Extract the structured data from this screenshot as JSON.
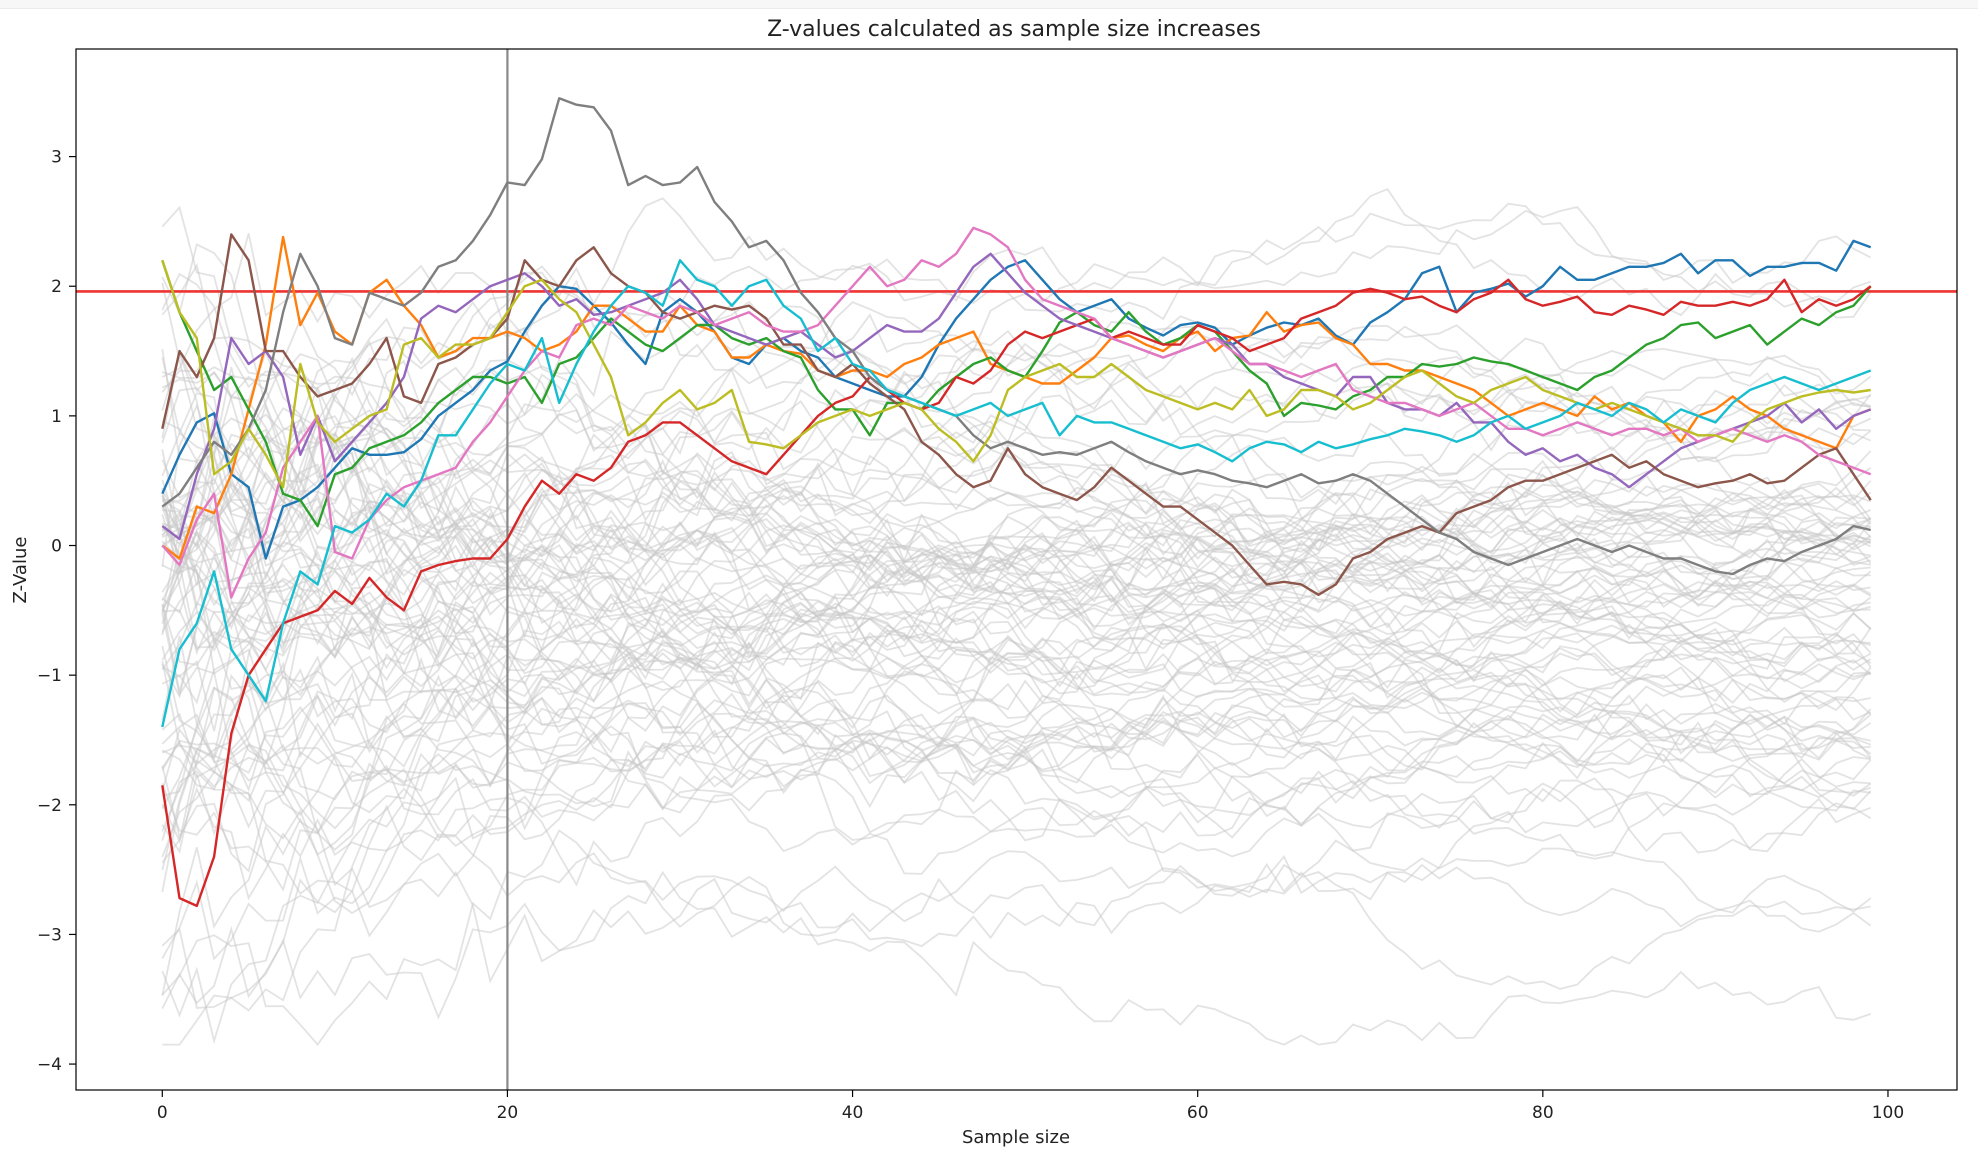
{
  "chart_data": {
    "type": "line",
    "title": "Z-values calculated as sample size increases",
    "xlabel": "Sample size",
    "ylabel": "Z-Value",
    "xlim": [
      -5,
      104
    ],
    "ylim": [
      -4.2,
      3.83
    ],
    "x_ticks": [
      0,
      20,
      40,
      60,
      80,
      100
    ],
    "y_ticks": [
      -4,
      -3,
      -2,
      -1,
      0,
      1,
      2,
      3
    ],
    "tick_labels": {
      "x": [
        "0",
        "20",
        "40",
        "60",
        "80",
        "100"
      ],
      "y": [
        "−4",
        "−3",
        "−2",
        "−1",
        "0",
        "1",
        "2",
        "3"
      ]
    },
    "grid": false,
    "legend": "none",
    "reference_lines": [
      {
        "orientation": "horizontal",
        "value": 1.96,
        "color": "#ee3333"
      },
      {
        "orientation": "vertical",
        "value": 20,
        "color": "#888888"
      }
    ],
    "background_series": {
      "count": 90,
      "color": "#c8c8c8",
      "opacity": 0.5,
      "note": "faint gray random-walk z-value traces, x = 0..99"
    },
    "series": [
      {
        "color": "#1f77b4",
        "x_start": 0,
        "values": [
          0.4,
          0.7,
          0.95,
          1.02,
          0.55,
          0.45,
          -0.1,
          0.3,
          0.35,
          0.45,
          0.6,
          0.75,
          0.7,
          0.7,
          0.72,
          0.82,
          1.0,
          1.1,
          1.2,
          1.35,
          1.42,
          1.65,
          1.85,
          2.0,
          1.98,
          1.85,
          1.72,
          1.55,
          1.4,
          1.8,
          1.9,
          1.8,
          1.65,
          1.45,
          1.4,
          1.55,
          1.6,
          1.5,
          1.45,
          1.3,
          1.25,
          1.2,
          1.15,
          1.15,
          1.3,
          1.55,
          1.75,
          1.9,
          2.05,
          2.15,
          2.2,
          2.05,
          1.9,
          1.8,
          1.85,
          1.9,
          1.75,
          1.68,
          1.62,
          1.7,
          1.72,
          1.68,
          1.55,
          1.62,
          1.68,
          1.72,
          1.7,
          1.75,
          1.62,
          1.55,
          1.72,
          1.8,
          1.9,
          2.1,
          2.15,
          1.8,
          1.95,
          1.98,
          2.02,
          1.92,
          2.0,
          2.15,
          2.05,
          2.05,
          2.1,
          2.15,
          2.15,
          2.18,
          2.25,
          2.1,
          2.2,
          2.2,
          2.08,
          2.15,
          2.15,
          2.18,
          2.18,
          2.12,
          2.35,
          2.3
        ]
      },
      {
        "color": "#ff7f0e",
        "x_start": 0,
        "values": [
          0.0,
          -0.1,
          0.3,
          0.25,
          0.55,
          1.05,
          1.55,
          2.38,
          1.7,
          1.95,
          1.65,
          1.55,
          1.95,
          2.05,
          1.85,
          1.7,
          1.45,
          1.5,
          1.6,
          1.6,
          1.65,
          1.6,
          1.5,
          1.55,
          1.65,
          1.85,
          1.85,
          1.75,
          1.65,
          1.65,
          1.85,
          1.7,
          1.65,
          1.45,
          1.45,
          1.55,
          1.5,
          1.48,
          1.35,
          1.3,
          1.35,
          1.35,
          1.3,
          1.4,
          1.45,
          1.55,
          1.6,
          1.65,
          1.4,
          1.35,
          1.3,
          1.25,
          1.25,
          1.35,
          1.45,
          1.6,
          1.62,
          1.55,
          1.5,
          1.6,
          1.65,
          1.5,
          1.6,
          1.62,
          1.8,
          1.65,
          1.7,
          1.72,
          1.6,
          1.55,
          1.4,
          1.4,
          1.35,
          1.35,
          1.3,
          1.25,
          1.2,
          1.1,
          1.0,
          1.05,
          1.1,
          1.05,
          1.0,
          1.15,
          1.05,
          1.1,
          1.0,
          0.95,
          0.8,
          1.0,
          1.05,
          1.15,
          1.05,
          1.0,
          0.9,
          0.85,
          0.8,
          0.75,
          1.0,
          1.05
        ]
      },
      {
        "color": "#2ca02c",
        "x_start": 0,
        "values": [
          2.2,
          1.8,
          1.5,
          1.2,
          1.3,
          1.05,
          0.8,
          0.4,
          0.35,
          0.15,
          0.55,
          0.6,
          0.75,
          0.8,
          0.85,
          0.95,
          1.1,
          1.2,
          1.3,
          1.3,
          1.25,
          1.3,
          1.1,
          1.4,
          1.45,
          1.6,
          1.75,
          1.65,
          1.55,
          1.5,
          1.6,
          1.7,
          1.7,
          1.6,
          1.55,
          1.6,
          1.5,
          1.45,
          1.2,
          1.05,
          1.05,
          0.85,
          1.1,
          1.1,
          1.05,
          1.2,
          1.3,
          1.4,
          1.45,
          1.35,
          1.3,
          1.5,
          1.72,
          1.8,
          1.7,
          1.65,
          1.8,
          1.65,
          1.55,
          1.6,
          1.7,
          1.65,
          1.5,
          1.35,
          1.25,
          1.0,
          1.1,
          1.08,
          1.05,
          1.15,
          1.2,
          1.3,
          1.3,
          1.4,
          1.38,
          1.4,
          1.45,
          1.42,
          1.4,
          1.35,
          1.3,
          1.25,
          1.2,
          1.3,
          1.35,
          1.45,
          1.55,
          1.6,
          1.7,
          1.72,
          1.6,
          1.65,
          1.7,
          1.55,
          1.65,
          1.75,
          1.7,
          1.8,
          1.85,
          2.0
        ]
      },
      {
        "color": "#d62728",
        "x_start": 0,
        "values": [
          -1.85,
          -2.72,
          -2.78,
          -2.4,
          -1.45,
          -1.0,
          -0.8,
          -0.6,
          -0.55,
          -0.5,
          -0.35,
          -0.45,
          -0.25,
          -0.4,
          -0.5,
          -0.2,
          -0.15,
          -0.12,
          -0.1,
          -0.1,
          0.05,
          0.3,
          0.5,
          0.4,
          0.55,
          0.5,
          0.6,
          0.8,
          0.85,
          0.95,
          0.95,
          0.85,
          0.75,
          0.65,
          0.6,
          0.55,
          0.7,
          0.85,
          1.0,
          1.1,
          1.15,
          1.3,
          1.2,
          1.1,
          1.05,
          1.1,
          1.3,
          1.25,
          1.35,
          1.55,
          1.65,
          1.6,
          1.65,
          1.7,
          1.75,
          1.6,
          1.65,
          1.6,
          1.55,
          1.55,
          1.7,
          1.65,
          1.6,
          1.5,
          1.55,
          1.6,
          1.75,
          1.8,
          1.85,
          1.95,
          1.98,
          1.95,
          1.9,
          1.92,
          1.85,
          1.8,
          1.9,
          1.95,
          2.05,
          1.9,
          1.85,
          1.88,
          1.92,
          1.8,
          1.78,
          1.85,
          1.82,
          1.78,
          1.88,
          1.85,
          1.85,
          1.88,
          1.85,
          1.9,
          2.05,
          1.8,
          1.9,
          1.85,
          1.9,
          2.0
        ]
      },
      {
        "color": "#9467bd",
        "x_start": 0,
        "values": [
          0.15,
          0.05,
          0.55,
          0.9,
          1.6,
          1.4,
          1.5,
          1.3,
          0.7,
          1.0,
          0.65,
          0.8,
          0.95,
          1.1,
          1.3,
          1.75,
          1.85,
          1.8,
          1.9,
          2.0,
          2.05,
          2.1,
          2.0,
          1.85,
          1.9,
          1.78,
          1.8,
          1.85,
          1.9,
          1.95,
          2.05,
          1.9,
          1.7,
          1.65,
          1.6,
          1.55,
          1.6,
          1.65,
          1.55,
          1.45,
          1.5,
          1.6,
          1.7,
          1.65,
          1.65,
          1.75,
          1.95,
          2.15,
          2.25,
          2.1,
          1.95,
          1.85,
          1.75,
          1.7,
          1.65,
          1.6,
          1.55,
          1.5,
          1.45,
          1.5,
          1.55,
          1.6,
          1.55,
          1.4,
          1.4,
          1.3,
          1.25,
          1.2,
          1.15,
          1.3,
          1.3,
          1.1,
          1.05,
          1.05,
          1.0,
          1.1,
          0.95,
          0.95,
          0.8,
          0.7,
          0.75,
          0.65,
          0.7,
          0.6,
          0.55,
          0.45,
          0.55,
          0.65,
          0.75,
          0.8,
          0.85,
          0.9,
          0.95,
          1.0,
          1.1,
          0.95,
          1.05,
          0.9,
          1.0,
          1.05
        ]
      },
      {
        "color": "#8c564b",
        "x_start": 0,
        "values": [
          0.9,
          1.5,
          1.3,
          1.6,
          2.4,
          2.2,
          1.5,
          1.5,
          1.3,
          1.15,
          1.2,
          1.25,
          1.4,
          1.6,
          1.15,
          1.1,
          1.4,
          1.45,
          1.55,
          1.6,
          1.75,
          2.2,
          2.05,
          2.0,
          2.2,
          2.3,
          2.1,
          2.0,
          1.95,
          1.8,
          1.75,
          1.8,
          1.85,
          1.82,
          1.85,
          1.75,
          1.55,
          1.55,
          1.35,
          1.3,
          1.4,
          1.25,
          1.15,
          1.05,
          0.8,
          0.7,
          0.55,
          0.45,
          0.5,
          0.75,
          0.55,
          0.45,
          0.4,
          0.35,
          0.45,
          0.6,
          0.5,
          0.4,
          0.3,
          0.3,
          0.2,
          0.1,
          0.0,
          -0.15,
          -0.3,
          -0.28,
          -0.3,
          -0.38,
          -0.3,
          -0.1,
          -0.05,
          0.05,
          0.1,
          0.15,
          0.1,
          0.25,
          0.3,
          0.35,
          0.45,
          0.5,
          0.5,
          0.55,
          0.6,
          0.65,
          0.7,
          0.6,
          0.65,
          0.55,
          0.5,
          0.45,
          0.48,
          0.5,
          0.55,
          0.48,
          0.5,
          0.6,
          0.7,
          0.75,
          0.55,
          0.35
        ]
      },
      {
        "color": "#e377c2",
        "x_start": 0,
        "values": [
          0.0,
          -0.15,
          0.2,
          0.4,
          -0.4,
          -0.1,
          0.1,
          0.6,
          0.8,
          1.0,
          -0.05,
          -0.1,
          0.2,
          0.35,
          0.45,
          0.5,
          0.55,
          0.6,
          0.8,
          0.95,
          1.15,
          1.35,
          1.5,
          1.45,
          1.7,
          1.75,
          1.7,
          1.85,
          1.8,
          1.75,
          1.85,
          1.8,
          1.7,
          1.75,
          1.8,
          1.7,
          1.65,
          1.65,
          1.7,
          1.85,
          2.0,
          2.15,
          2.0,
          2.05,
          2.2,
          2.15,
          2.25,
          2.45,
          2.4,
          2.3,
          2.05,
          1.9,
          1.85,
          1.8,
          1.75,
          1.6,
          1.55,
          1.5,
          1.45,
          1.5,
          1.55,
          1.6,
          1.5,
          1.4,
          1.4,
          1.35,
          1.3,
          1.35,
          1.4,
          1.2,
          1.15,
          1.1,
          1.1,
          1.05,
          1.0,
          1.05,
          1.1,
          1.0,
          0.9,
          0.9,
          0.85,
          0.9,
          0.95,
          0.9,
          0.85,
          0.9,
          0.9,
          0.85,
          0.9,
          0.8,
          0.85,
          0.9,
          0.85,
          0.8,
          0.85,
          0.8,
          0.7,
          0.65,
          0.6,
          0.55
        ]
      },
      {
        "color": "#7f7f7f",
        "x_start": 0,
        "values": [
          0.3,
          0.4,
          0.6,
          0.8,
          0.7,
          0.9,
          1.2,
          1.8,
          2.25,
          2.0,
          1.6,
          1.55,
          1.95,
          1.9,
          1.85,
          1.95,
          2.15,
          2.2,
          2.35,
          2.55,
          2.8,
          2.78,
          2.98,
          3.45,
          3.4,
          3.38,
          3.2,
          2.78,
          2.85,
          2.78,
          2.8,
          2.92,
          2.65,
          2.5,
          2.3,
          2.35,
          2.2,
          1.95,
          1.8,
          1.6,
          1.5,
          1.3,
          1.2,
          1.15,
          1.1,
          1.05,
          1.0,
          0.85,
          0.75,
          0.8,
          0.75,
          0.7,
          0.72,
          0.7,
          0.75,
          0.8,
          0.72,
          0.65,
          0.6,
          0.55,
          0.58,
          0.55,
          0.5,
          0.48,
          0.45,
          0.5,
          0.55,
          0.48,
          0.5,
          0.55,
          0.5,
          0.4,
          0.3,
          0.2,
          0.1,
          0.05,
          -0.05,
          -0.1,
          -0.15,
          -0.1,
          -0.05,
          0.0,
          0.05,
          0.0,
          -0.05,
          0.0,
          -0.05,
          -0.1,
          -0.1,
          -0.15,
          -0.2,
          -0.22,
          -0.15,
          -0.1,
          -0.12,
          -0.05,
          0.0,
          0.05,
          0.15,
          0.12
        ]
      },
      {
        "color": "#bcbd22",
        "x_start": 0,
        "values": [
          2.2,
          1.8,
          1.6,
          0.55,
          0.65,
          0.9,
          0.7,
          0.45,
          1.4,
          0.95,
          0.8,
          0.9,
          1.0,
          1.05,
          1.55,
          1.6,
          1.45,
          1.55,
          1.55,
          1.6,
          1.8,
          2.0,
          2.05,
          1.9,
          1.8,
          1.55,
          1.3,
          0.85,
          0.95,
          1.1,
          1.2,
          1.05,
          1.1,
          1.2,
          0.8,
          0.78,
          0.75,
          0.85,
          0.95,
          1.0,
          1.05,
          1.0,
          1.05,
          1.1,
          1.05,
          0.9,
          0.8,
          0.65,
          0.85,
          1.2,
          1.3,
          1.35,
          1.4,
          1.3,
          1.3,
          1.4,
          1.3,
          1.2,
          1.15,
          1.1,
          1.05,
          1.1,
          1.05,
          1.2,
          1.0,
          1.05,
          1.2,
          1.2,
          1.15,
          1.05,
          1.1,
          1.2,
          1.3,
          1.35,
          1.25,
          1.15,
          1.1,
          1.2,
          1.25,
          1.3,
          1.2,
          1.15,
          1.1,
          1.05,
          1.1,
          1.05,
          1.0,
          0.95,
          0.9,
          0.85,
          0.85,
          0.8,
          0.95,
          1.05,
          1.1,
          1.15,
          1.18,
          1.2,
          1.18,
          1.2
        ]
      },
      {
        "color": "#17becf",
        "x_start": 0,
        "values": [
          -1.4,
          -0.8,
          -0.6,
          -0.2,
          -0.8,
          -1.0,
          -1.2,
          -0.6,
          -0.2,
          -0.3,
          0.15,
          0.1,
          0.2,
          0.4,
          0.3,
          0.5,
          0.85,
          0.85,
          1.05,
          1.25,
          1.4,
          1.35,
          1.6,
          1.1,
          1.4,
          1.65,
          1.85,
          2.0,
          1.95,
          1.85,
          2.2,
          2.05,
          2.0,
          1.85,
          2.0,
          2.05,
          1.85,
          1.75,
          1.5,
          1.6,
          1.4,
          1.35,
          1.2,
          1.15,
          1.1,
          1.05,
          1.0,
          1.05,
          1.1,
          1.0,
          1.05,
          1.1,
          0.85,
          1.0,
          0.95,
          0.95,
          0.9,
          0.85,
          0.8,
          0.75,
          0.78,
          0.72,
          0.65,
          0.75,
          0.8,
          0.78,
          0.72,
          0.8,
          0.75,
          0.78,
          0.82,
          0.85,
          0.9,
          0.88,
          0.85,
          0.8,
          0.85,
          0.95,
          1.0,
          0.9,
          0.95,
          1.0,
          1.1,
          1.05,
          1.0,
          1.1,
          1.05,
          0.95,
          1.05,
          1.0,
          0.95,
          1.1,
          1.2,
          1.25,
          1.3,
          1.25,
          1.2,
          1.25,
          1.3,
          1.35
        ]
      }
    ]
  }
}
